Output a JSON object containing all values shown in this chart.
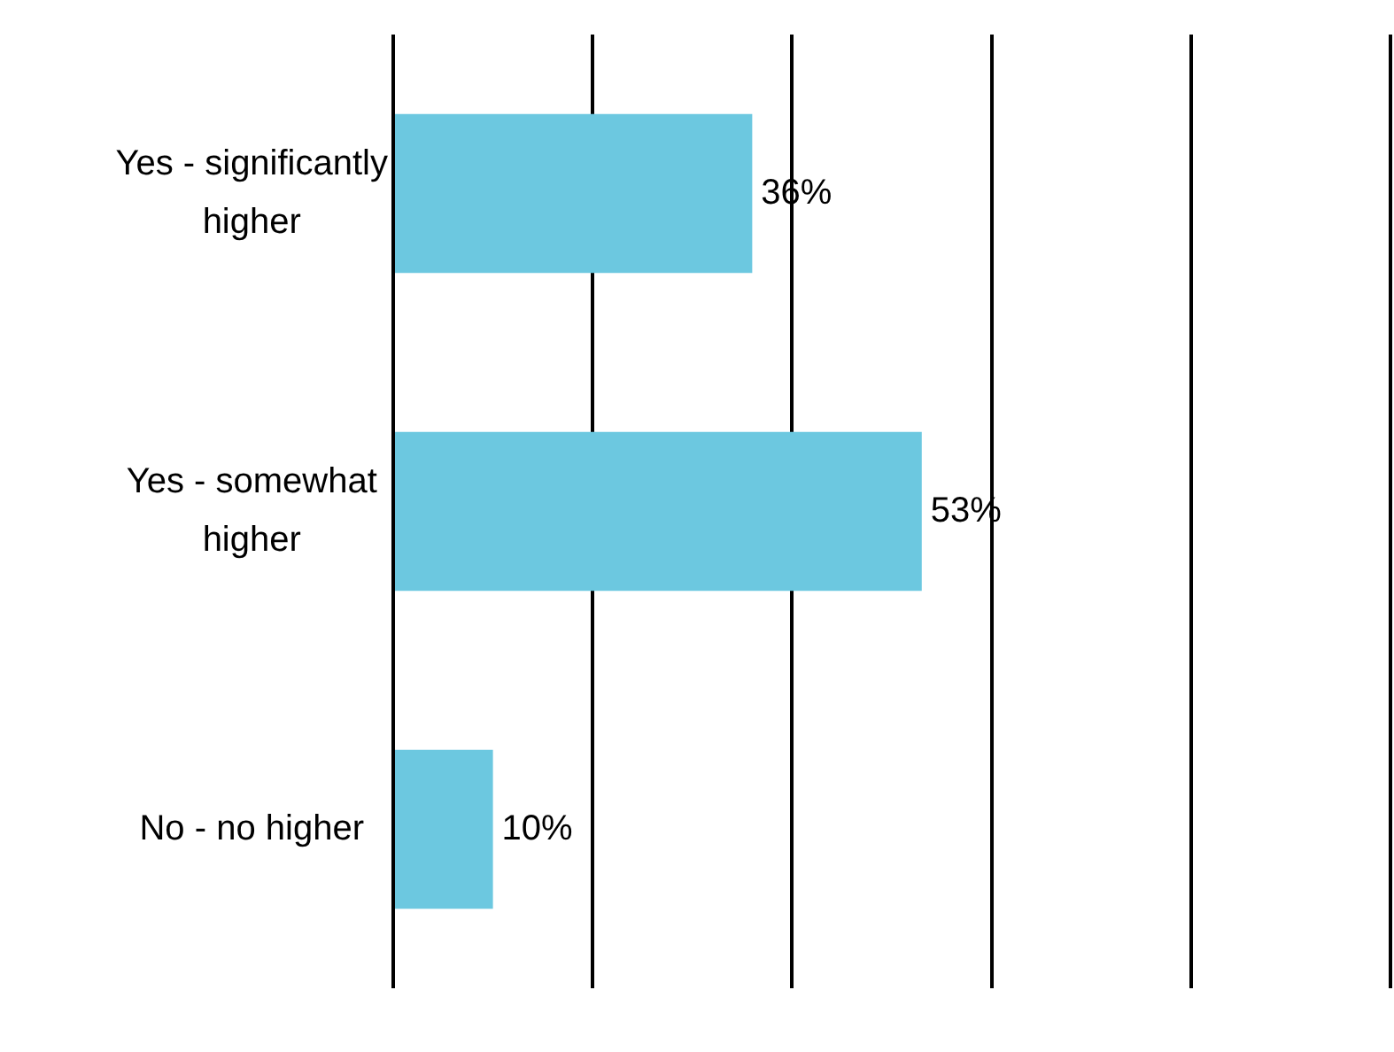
{
  "chart_data": {
    "type": "bar",
    "orientation": "horizontal",
    "categories": [
      "Yes - significantly higher",
      "Yes - somewhat higher",
      "No - no higher"
    ],
    "values": [
      36,
      53,
      10
    ],
    "value_labels": [
      "36%",
      "53%",
      "10%"
    ],
    "color": "#6cc8e0",
    "xlim": [
      0,
      100
    ],
    "xticks": [
      {
        "value": 0,
        "label": null
      },
      {
        "value": 20,
        "label": null
      },
      {
        "value": 40,
        "label": null
      },
      {
        "value": 60,
        "label": null
      },
      {
        "value": 80,
        "label": null
      },
      {
        "value": 100,
        "label": null
      }
    ],
    "grid": "x",
    "legend": false,
    "tick_labels": "y"
  }
}
